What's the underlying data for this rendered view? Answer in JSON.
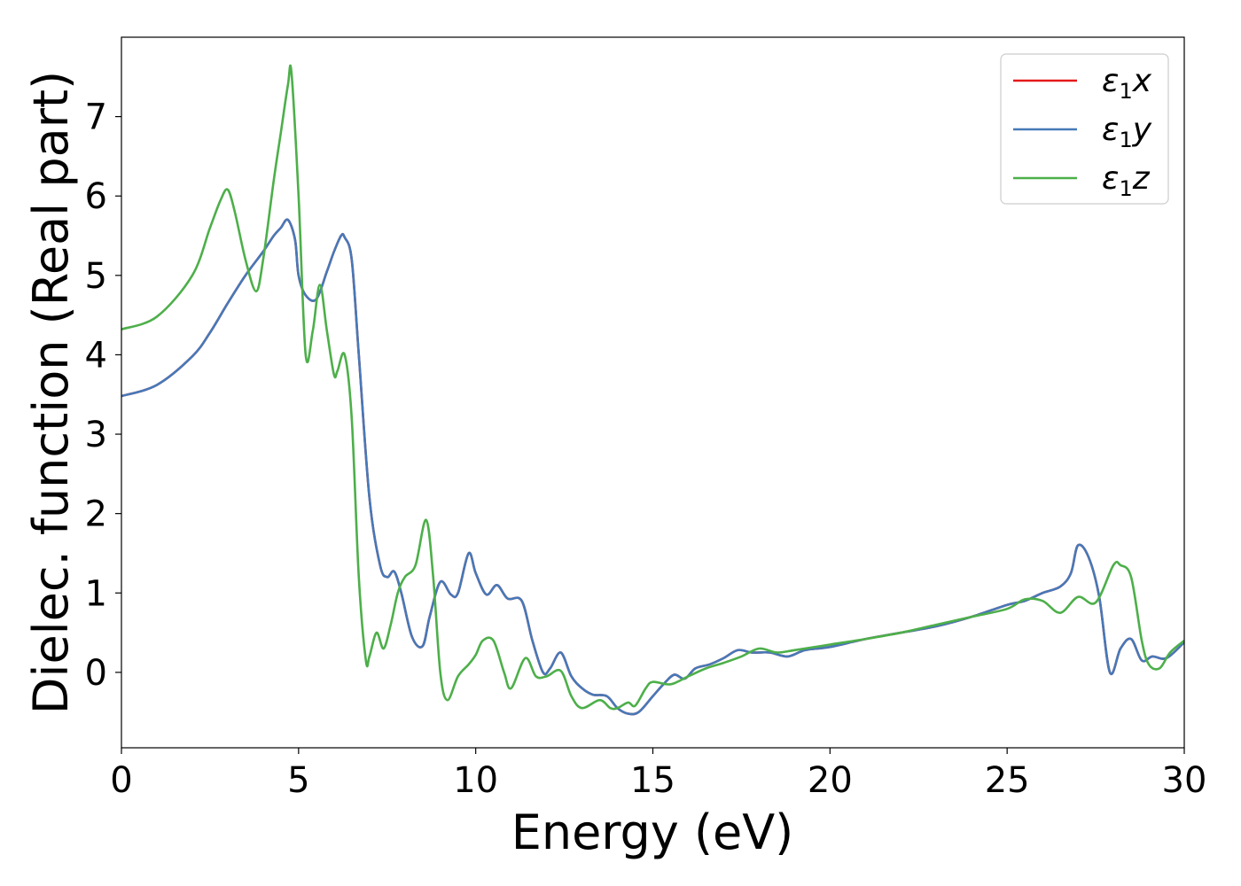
{
  "chart_data": {
    "type": "line",
    "xlabel": "Energy (eV)",
    "ylabel": "Dielec. function (Real part)",
    "xlim": [
      0,
      30
    ],
    "ylim": [
      -0.95,
      8.0
    ],
    "xticks": [
      0,
      5,
      10,
      15,
      20,
      25,
      30
    ],
    "yticks": [
      0,
      1,
      2,
      3,
      4,
      5,
      6,
      7
    ],
    "grid": false,
    "legend_position": "top-right",
    "series": [
      {
        "name": "ε1x",
        "legend": {
          "base": "ε",
          "sub": "1",
          "var": "x"
        },
        "color": "#e41a1c",
        "x": [
          0,
          1,
          2,
          2.5,
          3,
          3.5,
          4,
          4.3,
          4.5,
          4.7,
          4.9,
          5.0,
          5.2,
          5.5,
          5.8,
          6.0,
          6.2,
          6.3,
          6.5,
          6.7,
          7.0,
          7.3,
          7.5,
          7.7,
          7.9,
          8.2,
          8.5,
          8.7,
          9.0,
          9.3,
          9.5,
          9.8,
          10.0,
          10.3,
          10.6,
          10.9,
          11.3,
          11.6,
          11.9,
          12.1,
          12.4,
          12.7,
          13.0,
          13.3,
          13.7,
          14.0,
          14.3,
          14.6,
          15.0,
          15.3,
          15.6,
          15.9,
          16.2,
          16.6,
          17.0,
          17.4,
          17.8,
          18.3,
          18.8,
          19.3,
          20.0,
          21.0,
          22.0,
          23.0,
          24.0,
          25.0,
          25.5,
          26.0,
          26.5,
          26.8,
          27.0,
          27.3,
          27.6,
          27.9,
          28.2,
          28.5,
          28.8,
          29.1,
          29.5,
          30.0
        ],
        "values": [
          3.48,
          3.62,
          3.98,
          4.28,
          4.65,
          5.0,
          5.3,
          5.5,
          5.6,
          5.7,
          5.45,
          5.0,
          4.75,
          4.7,
          5.05,
          5.3,
          5.5,
          5.48,
          5.2,
          4.0,
          2.2,
          1.35,
          1.2,
          1.27,
          1.0,
          0.45,
          0.33,
          0.7,
          1.14,
          0.98,
          1.0,
          1.5,
          1.25,
          0.98,
          1.1,
          0.93,
          0.9,
          0.4,
          0.0,
          0.05,
          0.25,
          -0.05,
          -0.2,
          -0.28,
          -0.3,
          -0.45,
          -0.52,
          -0.5,
          -0.3,
          -0.15,
          -0.03,
          -0.08,
          0.05,
          0.1,
          0.18,
          0.28,
          0.25,
          0.25,
          0.2,
          0.28,
          0.32,
          0.42,
          0.5,
          0.58,
          0.7,
          0.85,
          0.9,
          1.0,
          1.08,
          1.25,
          1.6,
          1.45,
          0.95,
          0.0,
          0.3,
          0.42,
          0.15,
          0.2,
          0.18,
          0.38
        ]
      },
      {
        "name": "ε1y",
        "legend": {
          "base": "ε",
          "sub": "1",
          "var": "y"
        },
        "color": "#4679b8",
        "x": [
          0,
          1,
          2,
          2.5,
          3,
          3.5,
          4,
          4.3,
          4.5,
          4.7,
          4.9,
          5.0,
          5.2,
          5.5,
          5.8,
          6.0,
          6.2,
          6.3,
          6.5,
          6.7,
          7.0,
          7.3,
          7.5,
          7.7,
          7.9,
          8.2,
          8.5,
          8.7,
          9.0,
          9.3,
          9.5,
          9.8,
          10.0,
          10.3,
          10.6,
          10.9,
          11.3,
          11.6,
          11.9,
          12.1,
          12.4,
          12.7,
          13.0,
          13.3,
          13.7,
          14.0,
          14.3,
          14.6,
          15.0,
          15.3,
          15.6,
          15.9,
          16.2,
          16.6,
          17.0,
          17.4,
          17.8,
          18.3,
          18.8,
          19.3,
          20.0,
          21.0,
          22.0,
          23.0,
          24.0,
          25.0,
          25.5,
          26.0,
          26.5,
          26.8,
          27.0,
          27.3,
          27.6,
          27.9,
          28.2,
          28.5,
          28.8,
          29.1,
          29.5,
          30.0
        ],
        "values": [
          3.48,
          3.62,
          3.98,
          4.28,
          4.65,
          5.0,
          5.3,
          5.5,
          5.6,
          5.7,
          5.45,
          5.0,
          4.75,
          4.7,
          5.05,
          5.3,
          5.5,
          5.48,
          5.2,
          4.0,
          2.2,
          1.35,
          1.2,
          1.27,
          1.0,
          0.45,
          0.33,
          0.7,
          1.14,
          0.98,
          1.0,
          1.5,
          1.25,
          0.98,
          1.1,
          0.93,
          0.9,
          0.4,
          0.0,
          0.05,
          0.25,
          -0.05,
          -0.2,
          -0.28,
          -0.3,
          -0.45,
          -0.52,
          -0.5,
          -0.3,
          -0.15,
          -0.03,
          -0.08,
          0.05,
          0.1,
          0.18,
          0.28,
          0.25,
          0.25,
          0.2,
          0.28,
          0.32,
          0.42,
          0.5,
          0.58,
          0.7,
          0.85,
          0.9,
          1.0,
          1.08,
          1.25,
          1.6,
          1.45,
          0.95,
          0.0,
          0.3,
          0.42,
          0.15,
          0.2,
          0.18,
          0.38
        ]
      },
      {
        "name": "ε1z",
        "legend": {
          "base": "ε",
          "sub": "1",
          "var": "z"
        },
        "color": "#4daf4a",
        "x": [
          0,
          1,
          2,
          2.5,
          2.8,
          3.0,
          3.2,
          3.5,
          3.8,
          4.0,
          4.3,
          4.5,
          4.7,
          4.8,
          5.0,
          5.2,
          5.4,
          5.6,
          5.8,
          6.0,
          6.1,
          6.3,
          6.5,
          6.7,
          6.9,
          7.0,
          7.2,
          7.4,
          7.6,
          7.8,
          8.0,
          8.3,
          8.6,
          8.8,
          9.0,
          9.2,
          9.5,
          9.8,
          10.0,
          10.2,
          10.5,
          10.8,
          11.0,
          11.4,
          11.7,
          12.0,
          12.4,
          12.7,
          13.0,
          13.5,
          13.8,
          14.0,
          14.3,
          14.5,
          14.8,
          15.0,
          15.5,
          16.0,
          16.5,
          17.0,
          17.5,
          18.0,
          18.5,
          19.0,
          20.0,
          21.0,
          22.0,
          23.0,
          24.0,
          25.0,
          25.5,
          26.0,
          26.5,
          27.0,
          27.5,
          28.0,
          28.2,
          28.5,
          28.8,
          29.0,
          29.3,
          29.6,
          30.0
        ],
        "values": [
          4.32,
          4.48,
          5.0,
          5.6,
          5.95,
          6.08,
          5.8,
          5.2,
          4.8,
          5.2,
          6.2,
          6.8,
          7.4,
          7.55,
          6.0,
          4.0,
          4.3,
          4.88,
          4.3,
          3.75,
          3.8,
          4.0,
          3.2,
          1.2,
          0.15,
          0.2,
          0.5,
          0.3,
          0.6,
          1.0,
          1.2,
          1.35,
          1.92,
          1.2,
          0.0,
          -0.35,
          -0.05,
          0.1,
          0.22,
          0.4,
          0.4,
          0.0,
          -0.2,
          0.18,
          -0.05,
          -0.05,
          0.02,
          -0.3,
          -0.45,
          -0.35,
          -0.45,
          -0.45,
          -0.38,
          -0.42,
          -0.2,
          -0.12,
          -0.15,
          -0.05,
          0.05,
          0.12,
          0.2,
          0.3,
          0.25,
          0.28,
          0.35,
          0.42,
          0.5,
          0.6,
          0.7,
          0.8,
          0.92,
          0.9,
          0.75,
          0.95,
          0.88,
          1.35,
          1.35,
          1.2,
          0.4,
          0.1,
          0.05,
          0.25,
          0.4
        ]
      }
    ]
  }
}
